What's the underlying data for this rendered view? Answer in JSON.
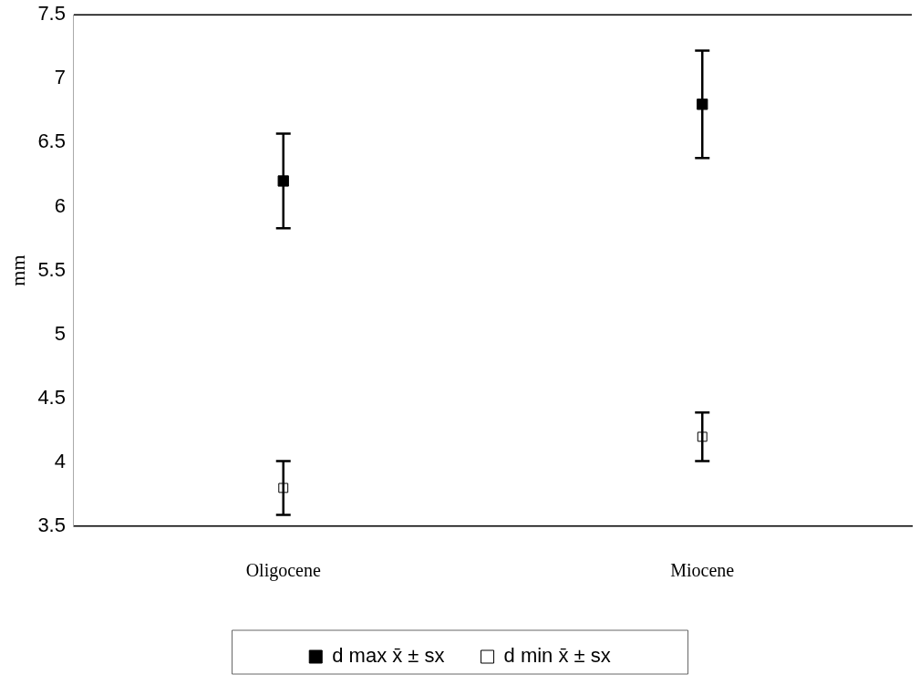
{
  "chart_data": {
    "type": "scatter",
    "ylabel": "mm",
    "categories": [
      "Oligocene",
      "Miocene"
    ],
    "series": [
      {
        "name": "d max x̄ ± sx",
        "color": "#000000",
        "values": [
          6.2,
          6.8
        ],
        "errors": [
          0.37,
          0.42
        ],
        "marker": "square"
      },
      {
        "name": "d min x̄ ± sx",
        "color": "#000000",
        "values": [
          3.8,
          4.2
        ],
        "errors": [
          0.21,
          0.19
        ],
        "marker": "square_open"
      }
    ],
    "ylim": [
      3.5,
      7.5
    ],
    "yticks": [
      3.5,
      4,
      4.5,
      5,
      5.5,
      6,
      6.5,
      7,
      7.5
    ],
    "grid": false,
    "legend": "bottom"
  }
}
